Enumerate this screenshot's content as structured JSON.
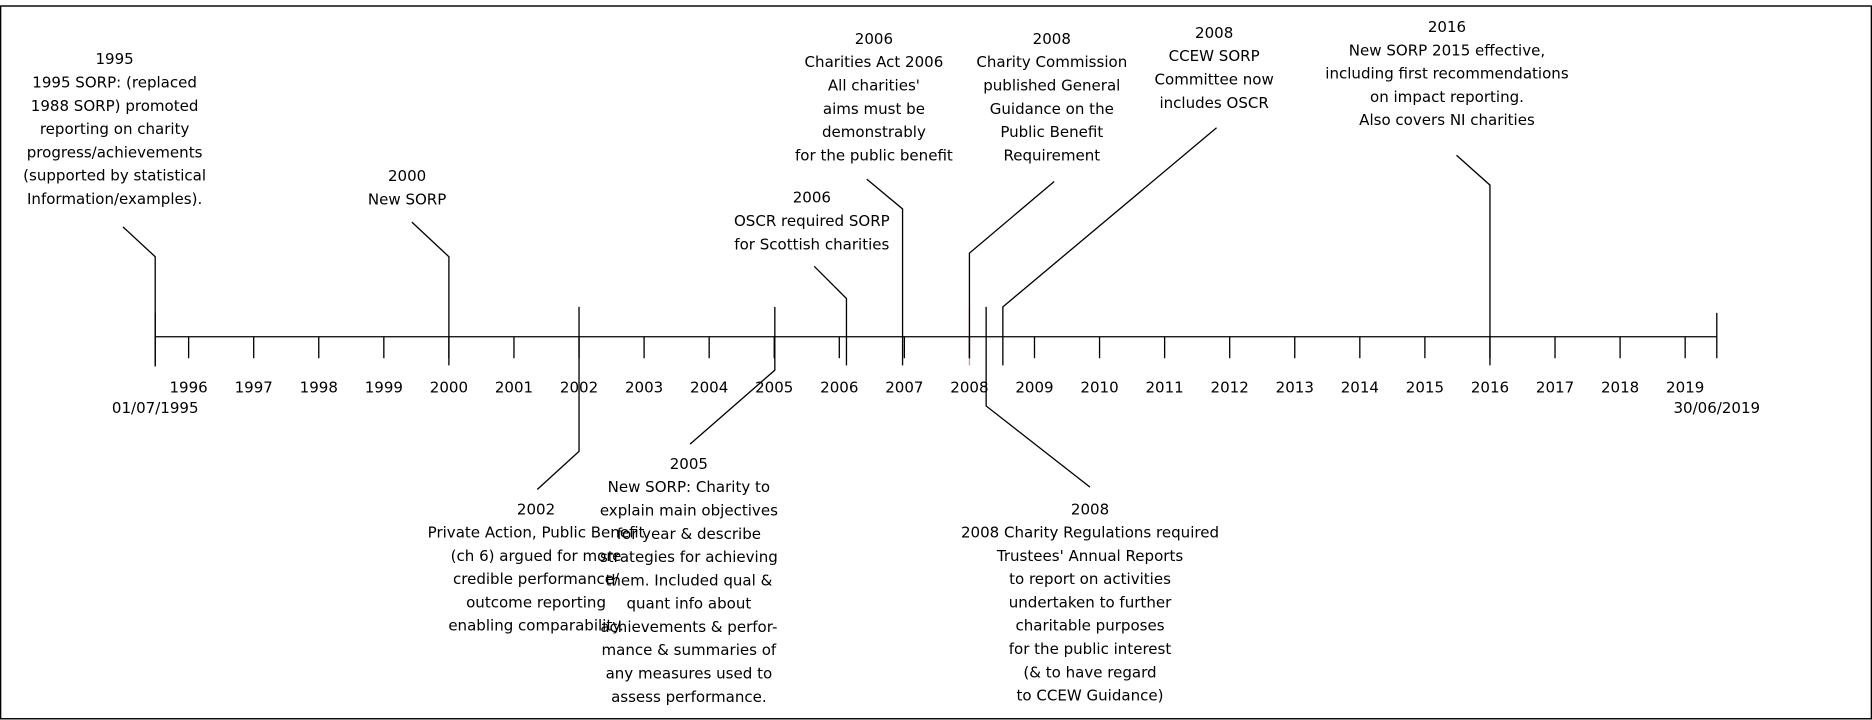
{
  "timeline": {
    "start_label": "01/07/1995",
    "end_label": "30/06/2019",
    "years": [
      "1996",
      "1997",
      "1998",
      "1999",
      "2000",
      "2001",
      "2002",
      "2003",
      "2004",
      "2005",
      "2006",
      "2007",
      "2008",
      "2009",
      "2010",
      "2011",
      "2012",
      "2013",
      "2014",
      "2015",
      "2016",
      "2017",
      "2018",
      "2019"
    ],
    "events": [
      {
        "year": "1995",
        "lines": [
          "1995 SORP: (replaced",
          "1988 SORP)  promoted",
          "reporting on charity",
          "progress/achievements",
          "(supported by statistical",
          "Information/examples)."
        ]
      },
      {
        "year": "2000",
        "lines": [
          "New SORP"
        ]
      },
      {
        "year": "2002",
        "lines": [
          "Private Action, Public Benefit",
          "(ch 6) argued for more",
          "credible performance/",
          "outcome reporting",
          "enabling comparability."
        ]
      },
      {
        "year": "2005",
        "lines": [
          "New SORP: Charity to",
          "explain main objectives",
          "for year & describe",
          "strategies for achieving",
          "them. Included qual &",
          "quant info about",
          "achievements & perfor-",
          "mance & summaries of",
          "any measures used to",
          "assess performance."
        ]
      },
      {
        "year": "2006",
        "lines": [
          "OSCR required SORP",
          "for Scottish charities"
        ]
      },
      {
        "year": "2006",
        "lines": [
          "Charities Act 2006",
          "All charities'",
          "aims must be",
          "demonstrably",
          "for the public benefit"
        ]
      },
      {
        "year": "2008",
        "lines": [
          "Charity Commission",
          "published General",
          "Guidance on the",
          "Public Benefit",
          "Requirement"
        ]
      },
      {
        "year": "2008",
        "lines": [
          "CCEW SORP",
          "Committee now",
          "includes OSCR"
        ]
      },
      {
        "year": "2008",
        "lines": [
          "2008 Charity Regulations required",
          "Trustees' Annual Reports",
          "to report on activities",
          "undertaken to further",
          "charitable purposes",
          "for the public interest",
          "(& to have regard",
          "to CCEW Guidance)"
        ]
      },
      {
        "year": "2016",
        "lines": [
          "New SORP 2015 effective,",
          "including first recommendations",
          "on impact reporting.",
          "Also covers NI charities"
        ]
      }
    ]
  }
}
